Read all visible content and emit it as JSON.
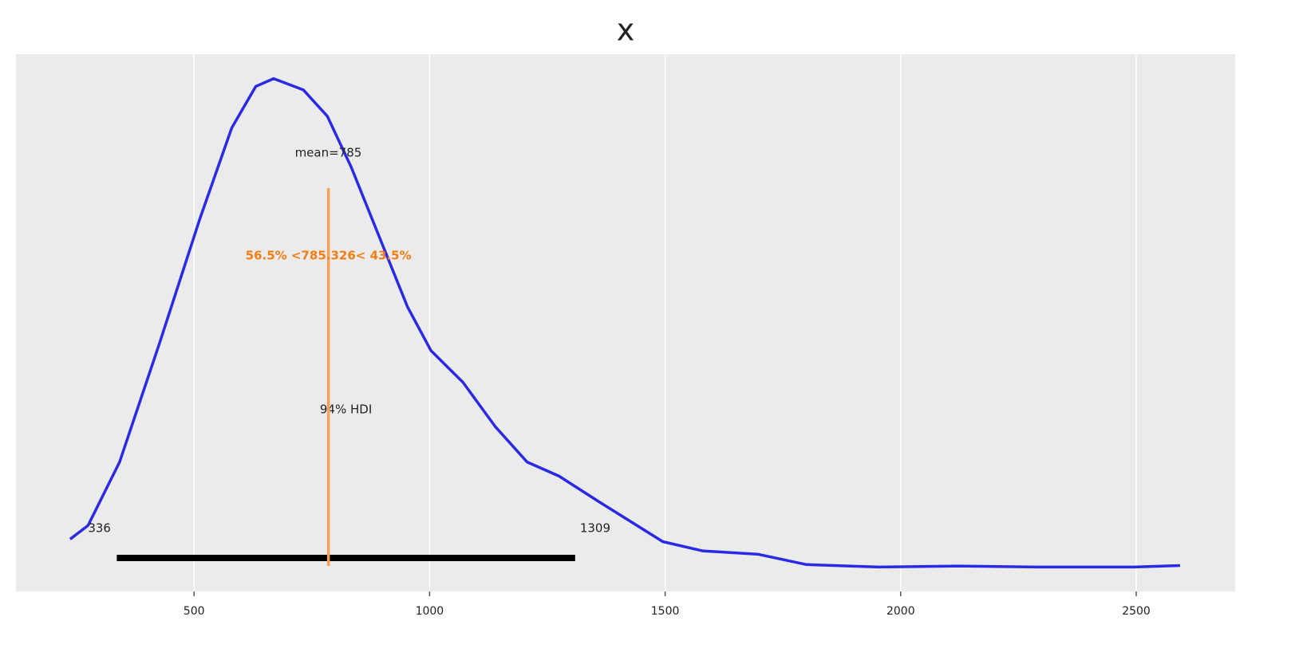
{
  "chart_data": {
    "type": "kde",
    "title": "x",
    "x": [
      237,
      275,
      342,
      427,
      512,
      580,
      631,
      669,
      732,
      783,
      834,
      902,
      953,
      1003,
      1071,
      1139,
      1207,
      1275,
      1359,
      1427,
      1495,
      1580,
      1698,
      1800,
      1953,
      2122,
      2292,
      2495,
      2593
    ],
    "values": [
      0.057,
      0.085,
      0.215,
      0.459,
      0.712,
      0.899,
      0.984,
      1.0,
      0.977,
      0.923,
      0.818,
      0.655,
      0.533,
      0.443,
      0.378,
      0.288,
      0.215,
      0.186,
      0.134,
      0.093,
      0.052,
      0.033,
      0.026,
      0.005,
      0,
      0.002,
      0,
      0,
      0.003
    ],
    "color": "#2a2ae6",
    "xlim": [
      122,
      2710
    ],
    "ylim": [
      -0.05,
      1.05
    ],
    "xticks": [
      500,
      1000,
      1500,
      2000,
      2500
    ],
    "grid": true,
    "mean": {
      "value": 785,
      "label": "mean=785"
    },
    "ref_val": {
      "value": 785.326,
      "label": "56.5% <785.326< 43.5%",
      "color": "#f5a05a",
      "text_color": "#f57c12"
    },
    "hdi": {
      "label": "94% HDI",
      "values": [
        336,
        1309
      ],
      "color": "#000000"
    }
  }
}
